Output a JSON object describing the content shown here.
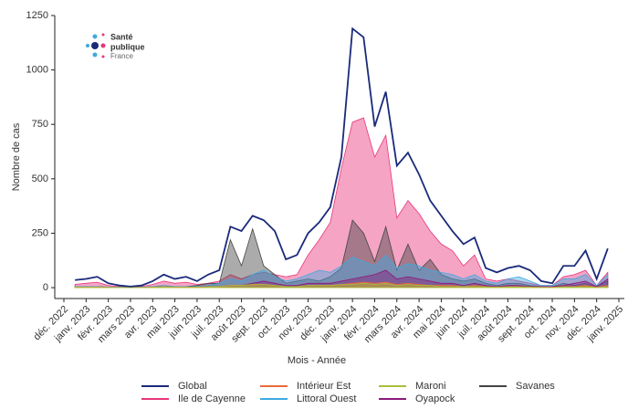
{
  "logo": {
    "line1": "Santé",
    "line2": "publique",
    "line3": "France"
  },
  "chart_data": {
    "type": "area",
    "x_label": "Mois - Année",
    "y_label": "Nombre de cas",
    "categories": [
      "déc. 2022",
      null,
      "janv. 2023",
      null,
      "févr. 2023",
      null,
      "mars 2023",
      null,
      "avr. 2023",
      null,
      "mai 2023",
      null,
      "juin 2023",
      null,
      "juil. 2023",
      null,
      "août 2023",
      null,
      "sept. 2023",
      null,
      "oct. 2023",
      null,
      "nov. 2023",
      null,
      "déc. 2023",
      null,
      "janv. 2024",
      null,
      "févr. 2024",
      null,
      "mars 2024",
      null,
      "avr. 2024",
      null,
      "mai 2024",
      null,
      "juin 2024",
      null,
      "juil. 2024",
      null,
      "août 2024",
      null,
      "sept. 2024",
      null,
      "oct. 2024",
      null,
      "nov. 2024",
      null,
      "déc. 2024",
      null,
      "janv. 2025"
    ],
    "ylim": [
      -50,
      1250
    ],
    "yticks": [
      0,
      250,
      500,
      750,
      1000,
      1250
    ],
    "series": [
      {
        "name": "Ile de Cayenne",
        "color": "#e8367a",
        "area": true,
        "values": [
          null,
          15,
          20,
          25,
          10,
          5,
          3,
          5,
          15,
          30,
          20,
          25,
          15,
          20,
          30,
          60,
          40,
          60,
          70,
          60,
          50,
          60,
          150,
          220,
          300,
          550,
          760,
          780,
          600,
          700,
          320,
          400,
          340,
          260,
          200,
          170,
          100,
          150,
          40,
          30,
          40,
          30,
          20,
          10,
          10,
          50,
          60,
          80,
          10,
          70,
          null
        ]
      },
      {
        "name": "Savanes",
        "color": "#444444",
        "area": true,
        "values": [
          null,
          5,
          5,
          5,
          3,
          2,
          1,
          2,
          5,
          5,
          5,
          5,
          10,
          20,
          20,
          220,
          100,
          270,
          100,
          60,
          20,
          30,
          40,
          30,
          50,
          90,
          310,
          250,
          120,
          280,
          80,
          200,
          80,
          130,
          60,
          40,
          30,
          40,
          20,
          10,
          20,
          20,
          10,
          5,
          5,
          20,
          10,
          20,
          5,
          30,
          null
        ]
      },
      {
        "name": "Littoral Ouest",
        "color": "#3fa9e0",
        "area": true,
        "values": [
          null,
          5,
          5,
          5,
          3,
          2,
          1,
          2,
          5,
          10,
          5,
          5,
          5,
          10,
          20,
          40,
          30,
          60,
          80,
          50,
          30,
          40,
          60,
          80,
          70,
          100,
          140,
          120,
          100,
          150,
          90,
          110,
          100,
          80,
          70,
          60,
          40,
          60,
          30,
          20,
          40,
          50,
          30,
          10,
          10,
          40,
          40,
          60,
          10,
          60,
          null
        ]
      },
      {
        "name": "Oyapock",
        "color": "#8b1a7a",
        "area": true,
        "values": [
          null,
          2,
          2,
          2,
          1,
          1,
          1,
          1,
          2,
          3,
          2,
          2,
          2,
          5,
          5,
          10,
          10,
          20,
          30,
          20,
          10,
          10,
          20,
          20,
          20,
          30,
          40,
          50,
          60,
          80,
          40,
          50,
          40,
          30,
          20,
          20,
          10,
          20,
          10,
          5,
          10,
          10,
          5,
          5,
          5,
          10,
          20,
          30,
          5,
          40,
          null
        ]
      },
      {
        "name": "Intérieur Est",
        "color": "#e86a3a",
        "area": true,
        "values": [
          null,
          3,
          3,
          3,
          2,
          1,
          1,
          1,
          3,
          5,
          3,
          3,
          3,
          5,
          5,
          10,
          10,
          15,
          15,
          10,
          5,
          5,
          10,
          10,
          10,
          15,
          20,
          25,
          20,
          25,
          15,
          20,
          15,
          10,
          10,
          10,
          5,
          10,
          5,
          3,
          5,
          5,
          3,
          2,
          2,
          5,
          5,
          10,
          2,
          10,
          null
        ]
      },
      {
        "name": "Maroni",
        "color": "#a8c03a",
        "area": true,
        "values": [
          null,
          2,
          2,
          2,
          1,
          1,
          1,
          1,
          2,
          3,
          2,
          2,
          2,
          3,
          5,
          10,
          10,
          15,
          15,
          10,
          5,
          5,
          10,
          10,
          10,
          15,
          15,
          20,
          15,
          20,
          10,
          15,
          10,
          10,
          5,
          5,
          5,
          5,
          3,
          2,
          3,
          3,
          2,
          1,
          1,
          3,
          3,
          5,
          1,
          5,
          null
        ]
      },
      {
        "name": "Global",
        "color": "#1a2a7a",
        "area": false,
        "values": [
          null,
          35,
          40,
          50,
          20,
          10,
          5,
          10,
          30,
          60,
          40,
          50,
          30,
          60,
          80,
          280,
          260,
          330,
          310,
          260,
          130,
          150,
          250,
          300,
          370,
          600,
          1190,
          1150,
          740,
          900,
          560,
          620,
          520,
          400,
          330,
          260,
          200,
          230,
          90,
          70,
          90,
          100,
          80,
          30,
          20,
          100,
          100,
          170,
          40,
          180,
          null
        ]
      }
    ],
    "legend_order": [
      6,
      0,
      4,
      2,
      5,
      3,
      1
    ]
  }
}
